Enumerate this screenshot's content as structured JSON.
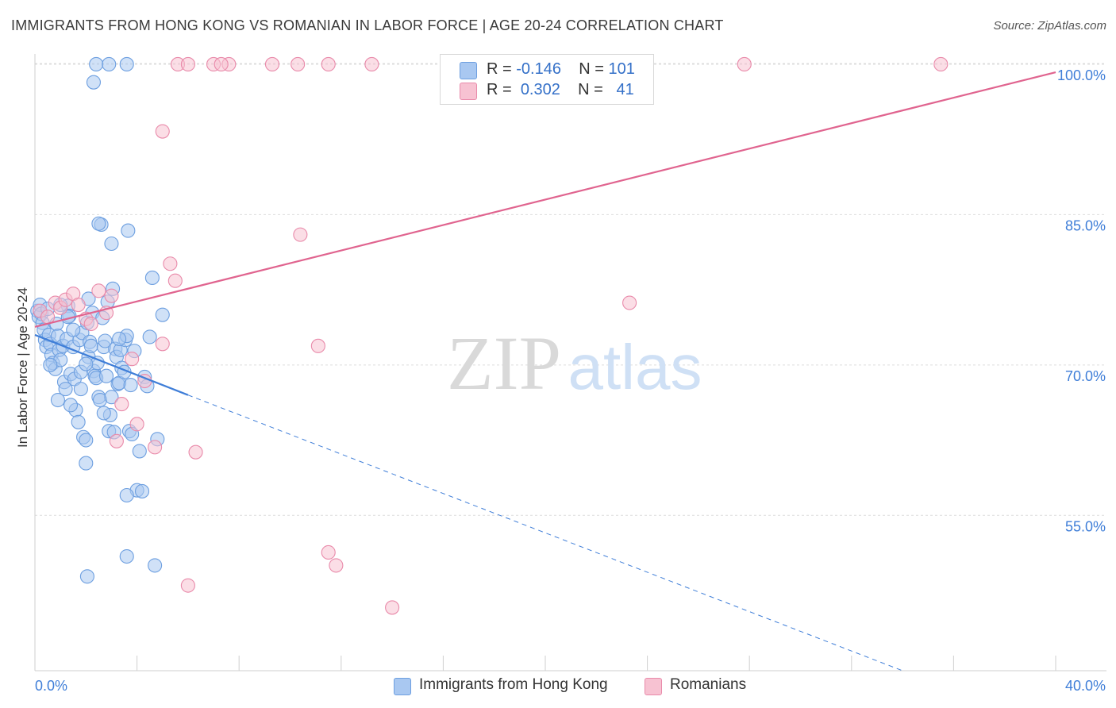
{
  "title": "IMMIGRANTS FROM HONG KONG VS ROMANIAN IN LABOR FORCE | AGE 20-24 CORRELATION CHART",
  "source": "Source: ZipAtlas.com",
  "watermark": {
    "zip": "ZIP",
    "atlas": "atlas"
  },
  "legend": {
    "rows": [
      {
        "r_label": "R =",
        "r_value": "-0.146",
        "n_label": "N =",
        "n_value": "101",
        "color": "#a9c8f1",
        "border": "#6d9fe0"
      },
      {
        "r_label": "R =",
        "r_value": "0.302",
        "n_label": "N =",
        "n_value": "41",
        "color": "#f7c2d2",
        "border": "#e98aaa"
      }
    ]
  },
  "bottom_legend": [
    {
      "label": "Immigrants from Hong Kong",
      "color": "#a9c8f1",
      "border": "#6d9fe0"
    },
    {
      "label": "Romanians",
      "color": "#f7c2d2",
      "border": "#e98aaa"
    }
  ],
  "chart_data": {
    "type": "scatter",
    "xlabel": "",
    "ylabel": "In Labor Force | Age 20-24",
    "xlim": [
      0,
      40
    ],
    "ylim": [
      39.5,
      101.5
    ],
    "x_tick_labels": [
      {
        "value": 0,
        "label": "0.0%"
      },
      {
        "value": 40,
        "label": "40.0%"
      }
    ],
    "y_tick_labels": [
      {
        "value": 55,
        "label": "55.0%"
      },
      {
        "value": 70,
        "label": "70.0%"
      },
      {
        "value": 85,
        "label": "85.0%"
      },
      {
        "value": 100,
        "label": "100.0%"
      }
    ],
    "grid": true,
    "legend_position": "top-center",
    "series": [
      {
        "name": "Immigrants from Hong Kong",
        "color": "#6d9fe0",
        "fill": "#a9c8f1",
        "trend": {
          "x": [
            0,
            6
          ],
          "y": [
            73.0,
            67.0
          ],
          "dashed_to": {
            "x": 34,
            "y": 39.5
          },
          "color": "#3f7ed8"
        },
        "points": [
          [
            0.1,
            75.4
          ],
          [
            0.15,
            74.8
          ],
          [
            0.2,
            76.0
          ],
          [
            0.25,
            75.1
          ],
          [
            0.3,
            74.2
          ],
          [
            0.35,
            73.5
          ],
          [
            0.4,
            72.5
          ],
          [
            0.45,
            71.8
          ],
          [
            0.5,
            75.6
          ],
          [
            0.55,
            73.0
          ],
          [
            0.6,
            72.1
          ],
          [
            0.65,
            71.0
          ],
          [
            0.7,
            70.2
          ],
          [
            0.8,
            69.6
          ],
          [
            0.85,
            74.1
          ],
          [
            0.9,
            72.9
          ],
          [
            0.95,
            71.5
          ],
          [
            1.0,
            70.5
          ],
          [
            1.1,
            71.9
          ],
          [
            1.15,
            68.3
          ],
          [
            1.2,
            67.6
          ],
          [
            1.25,
            72.6
          ],
          [
            1.3,
            75.9
          ],
          [
            1.35,
            74.9
          ],
          [
            1.4,
            69.1
          ],
          [
            1.5,
            71.8
          ],
          [
            1.55,
            68.6
          ],
          [
            1.6,
            65.5
          ],
          [
            1.7,
            64.3
          ],
          [
            1.75,
            72.5
          ],
          [
            1.8,
            69.3
          ],
          [
            1.85,
            73.2
          ],
          [
            1.9,
            62.8
          ],
          [
            2.0,
            62.5
          ],
          [
            2.05,
            74.2
          ],
          [
            2.1,
            70.8
          ],
          [
            2.15,
            72.3
          ],
          [
            2.2,
            71.9
          ],
          [
            2.25,
            75.2
          ],
          [
            2.3,
            69.4
          ],
          [
            2.35,
            68.9
          ],
          [
            2.4,
            68.7
          ],
          [
            2.45,
            70.2
          ],
          [
            2.5,
            66.8
          ],
          [
            2.55,
            66.5
          ],
          [
            2.6,
            84.0
          ],
          [
            2.65,
            74.7
          ],
          [
            2.7,
            71.8
          ],
          [
            2.75,
            72.4
          ],
          [
            2.8,
            68.9
          ],
          [
            2.85,
            76.3
          ],
          [
            2.9,
            63.4
          ],
          [
            2.95,
            65.0
          ],
          [
            3.0,
            66.8
          ],
          [
            3.05,
            77.6
          ],
          [
            3.1,
            63.3
          ],
          [
            3.15,
            71.6
          ],
          [
            3.2,
            70.8
          ],
          [
            3.25,
            68.1
          ],
          [
            3.3,
            68.2
          ],
          [
            3.35,
            71.5
          ],
          [
            3.4,
            69.7
          ],
          [
            3.5,
            69.3
          ],
          [
            3.55,
            72.5
          ],
          [
            3.6,
            72.9
          ],
          [
            3.65,
            83.4
          ],
          [
            3.7,
            63.4
          ],
          [
            3.75,
            68.0
          ],
          [
            3.8,
            63.1
          ],
          [
            3.9,
            71.4
          ],
          [
            4.0,
            57.5
          ],
          [
            4.1,
            61.4
          ],
          [
            4.2,
            57.4
          ],
          [
            4.3,
            68.8
          ],
          [
            4.4,
            67.9
          ],
          [
            4.5,
            72.8
          ],
          [
            4.6,
            78.7
          ],
          [
            4.8,
            62.6
          ],
          [
            5.0,
            75.0
          ],
          [
            2.3,
            98.2
          ],
          [
            2.4,
            100.0
          ],
          [
            2.9,
            100.0
          ],
          [
            3.6,
            100.0
          ],
          [
            2.1,
            76.6
          ],
          [
            2.0,
            60.2
          ],
          [
            2.5,
            84.1
          ],
          [
            3.0,
            82.1
          ],
          [
            3.6,
            57.0
          ],
          [
            3.6,
            50.9
          ],
          [
            4.7,
            50.0
          ],
          [
            2.05,
            48.9
          ],
          [
            1.0,
            76.0
          ],
          [
            1.3,
            74.8
          ],
          [
            0.6,
            70.0
          ],
          [
            0.9,
            66.5
          ],
          [
            1.5,
            73.5
          ],
          [
            2.0,
            70.1
          ],
          [
            1.8,
            67.6
          ],
          [
            2.7,
            65.2
          ],
          [
            3.3,
            72.6
          ],
          [
            1.4,
            66.0
          ]
        ]
      },
      {
        "name": "Romanians",
        "color": "#e98aaa",
        "fill": "#f7c2d2",
        "trend": {
          "x": [
            0,
            40
          ],
          "y": [
            73.8,
            99.2
          ],
          "color": "#e0648f"
        },
        "points": [
          [
            0.2,
            75.4
          ],
          [
            0.5,
            74.8
          ],
          [
            0.8,
            76.2
          ],
          [
            1.0,
            75.7
          ],
          [
            1.2,
            76.5
          ],
          [
            1.5,
            77.1
          ],
          [
            1.7,
            76.0
          ],
          [
            2.0,
            74.6
          ],
          [
            2.2,
            74.1
          ],
          [
            2.5,
            77.4
          ],
          [
            2.8,
            75.2
          ],
          [
            3.0,
            76.9
          ],
          [
            3.2,
            62.4
          ],
          [
            3.4,
            66.1
          ],
          [
            3.8,
            70.6
          ],
          [
            4.0,
            64.1
          ],
          [
            4.3,
            68.4
          ],
          [
            4.7,
            61.8
          ],
          [
            5.0,
            72.1
          ],
          [
            5.3,
            80.1
          ],
          [
            5.5,
            78.4
          ],
          [
            6.0,
            48.0
          ],
          [
            6.3,
            61.3
          ],
          [
            7.0,
            100.0
          ],
          [
            7.6,
            100.0
          ],
          [
            9.3,
            100.0
          ],
          [
            10.3,
            100.0
          ],
          [
            10.4,
            83.0
          ],
          [
            11.5,
            100.0
          ],
          [
            13.2,
            100.0
          ],
          [
            11.1,
            71.9
          ],
          [
            11.5,
            51.3
          ],
          [
            11.8,
            50.0
          ],
          [
            14.0,
            45.8
          ],
          [
            23.3,
            76.2
          ],
          [
            27.8,
            100.0
          ],
          [
            35.5,
            100.0
          ],
          [
            5.6,
            100.0
          ],
          [
            6.0,
            100.0
          ],
          [
            7.3,
            100.0
          ],
          [
            5.0,
            93.3
          ]
        ]
      }
    ]
  }
}
